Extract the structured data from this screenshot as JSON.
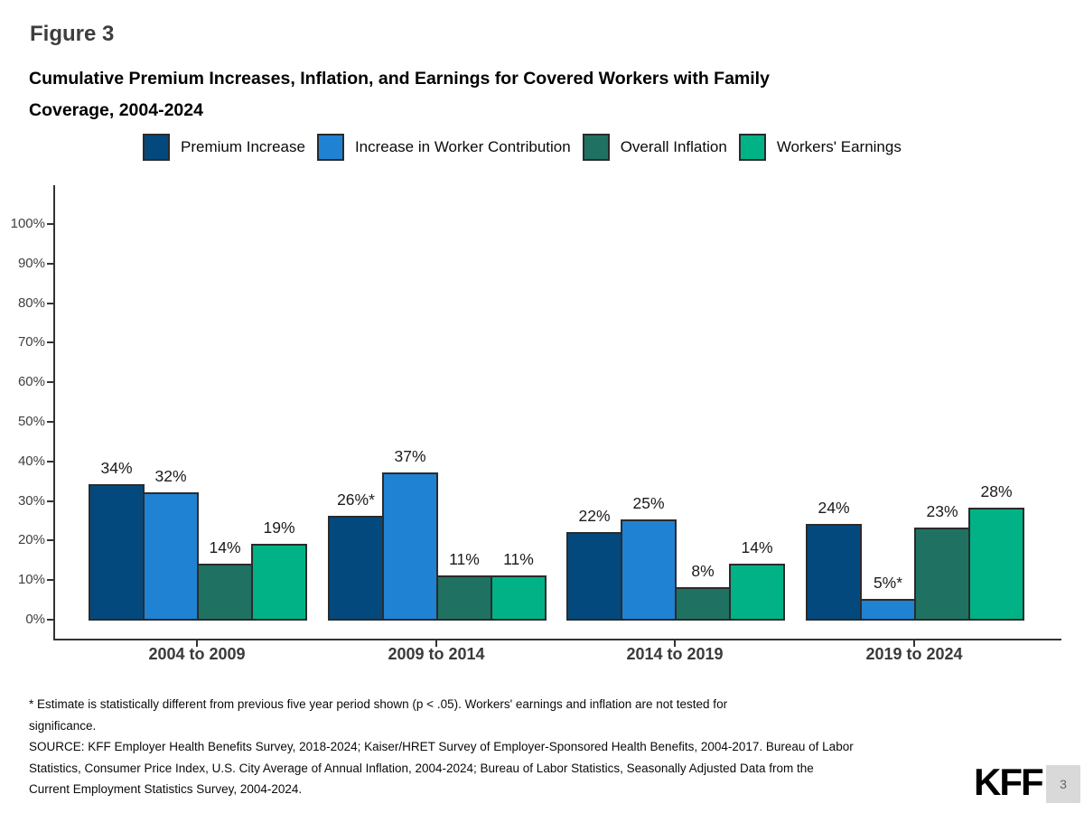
{
  "slide": {
    "figure_label": "Figure 3",
    "title_line1": "Cumulative Premium Increases, Inflation, and Earnings for Covered Workers with Family",
    "title_line2": "Coverage, 2004-2024",
    "logo": "KFF",
    "page_number": "3"
  },
  "footnote": {
    "lines": [
      "* Estimate is statistically different from previous five year period shown (p < .05). Workers' earnings and inflation are not tested for",
      "significance.",
      "SOURCE: KFF Employer Health Benefits Survey, 2018-2024; Kaiser/HRET Survey of Employer-Sponsored Health Benefits, 2004-2017. Bureau of Labor",
      "Statistics, Consumer Price Index, U.S. City Average of Annual Inflation, 2004-2024; Bureau of Labor Statistics, Seasonally Adjusted Data from the",
      "Current Employment Statistics Survey, 2004-2024."
    ]
  },
  "chart_data": {
    "type": "bar",
    "title": "Cumulative Premium Increases, Inflation, and Earnings for Covered Workers with Family Coverage, 2004-2024",
    "categories": [
      "2004 to 2009",
      "2009 to 2014",
      "2014 to 2019",
      "2019 to 2024"
    ],
    "series": [
      {
        "name": "Premium Increase",
        "color": "#04497E",
        "values": [
          34,
          26,
          22,
          24
        ],
        "labels": [
          "34%",
          "26%*",
          "22%",
          "24%"
        ]
      },
      {
        "name": "Increase in Worker Contribution",
        "color": "#1F82D3",
        "values": [
          32,
          37,
          25,
          5
        ],
        "labels": [
          "32%",
          "37%",
          "25%",
          "5%*"
        ]
      },
      {
        "name": "Overall Inflation",
        "color": "#1F7262",
        "values": [
          14,
          11,
          8,
          23
        ],
        "labels": [
          "14%",
          "11%",
          "8%",
          "23%"
        ]
      },
      {
        "name": "Workers' Earnings",
        "color": "#00B286",
        "values": [
          19,
          11,
          14,
          28
        ],
        "labels": [
          "19%",
          "11%",
          "14%",
          "28%"
        ]
      }
    ],
    "xlabel": "",
    "ylabel": "",
    "ylim": [
      0,
      100
    ],
    "yticks": [
      "0%",
      "10%",
      "20%",
      "30%",
      "40%",
      "50%",
      "60%",
      "70%",
      "80%",
      "90%",
      "100%"
    ],
    "grid": false,
    "legend_position": "top",
    "bar_border_color": "#2B2B2B",
    "axis_color": "#333333"
  }
}
